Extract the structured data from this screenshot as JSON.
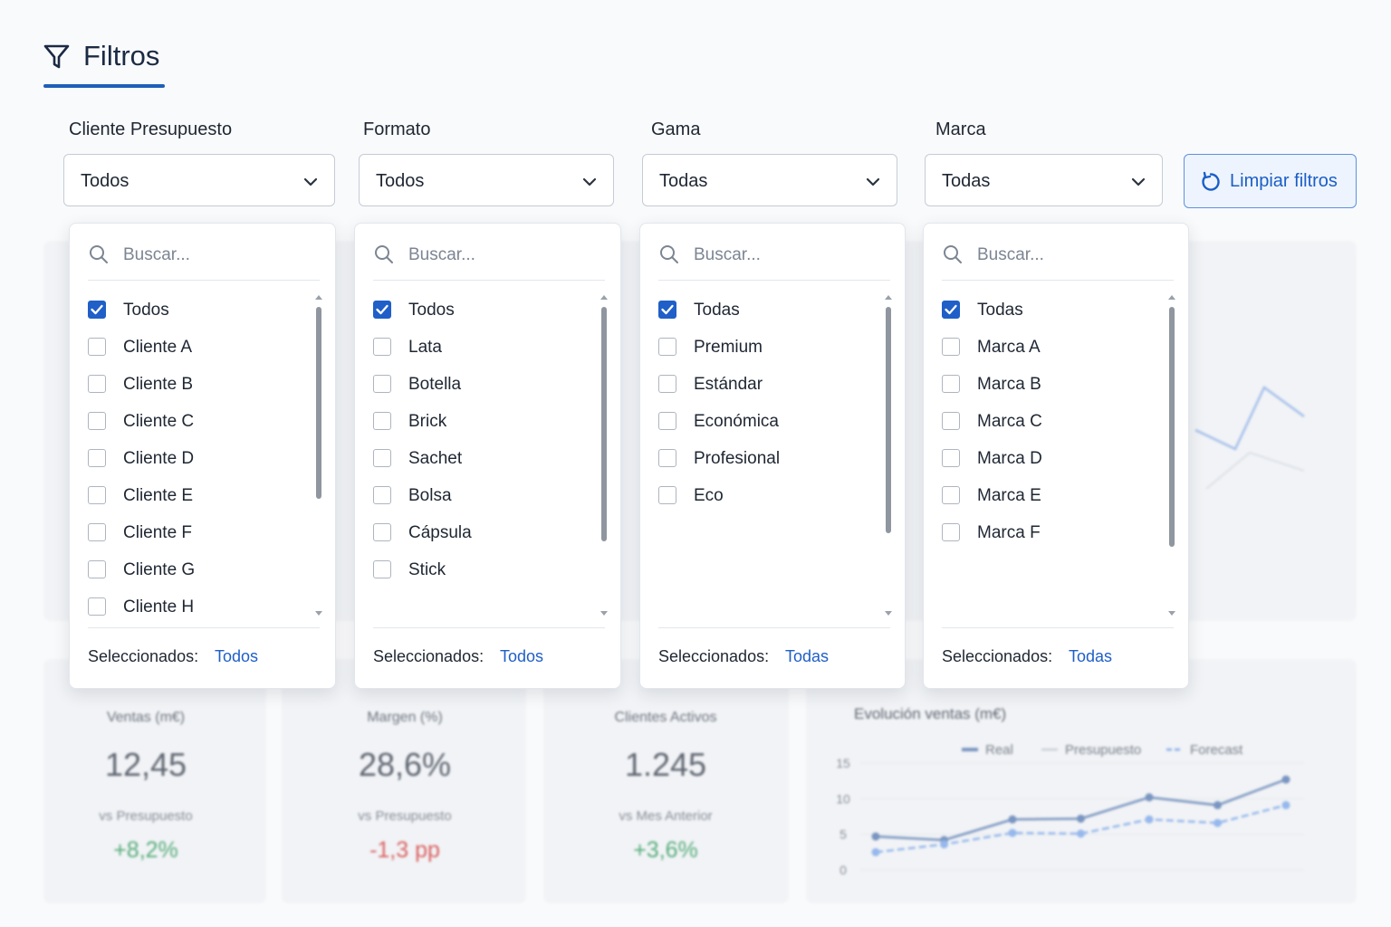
{
  "header": {
    "title": "Filtros"
  },
  "filters": [
    {
      "label": "Cliente Presupuesto",
      "value": "Todos",
      "search_placeholder": "Buscar...",
      "options": [
        {
          "label": "Todos",
          "checked": true
        },
        {
          "label": "Cliente A",
          "checked": false
        },
        {
          "label": "Cliente B",
          "checked": false
        },
        {
          "label": "Cliente C",
          "checked": false
        },
        {
          "label": "Cliente D",
          "checked": false
        },
        {
          "label": "Cliente E",
          "checked": false
        },
        {
          "label": "Cliente F",
          "checked": false
        },
        {
          "label": "Cliente G",
          "checked": false
        },
        {
          "label": "Cliente H",
          "checked": false
        }
      ],
      "selected_label": "Seleccionados:",
      "selected_value": "Todos"
    },
    {
      "label": "Formato",
      "value": "Todos",
      "search_placeholder": "Buscar...",
      "options": [
        {
          "label": "Todos",
          "checked": true
        },
        {
          "label": "Lata",
          "checked": false
        },
        {
          "label": "Botella",
          "checked": false
        },
        {
          "label": "Brick",
          "checked": false
        },
        {
          "label": "Sachet",
          "checked": false
        },
        {
          "label": "Bolsa",
          "checked": false
        },
        {
          "label": "Cápsula",
          "checked": false
        },
        {
          "label": "Stick",
          "checked": false
        }
      ],
      "selected_label": "Seleccionados:",
      "selected_value": "Todos"
    },
    {
      "label": "Gama",
      "value": "Todas",
      "search_placeholder": "Buscar...",
      "options": [
        {
          "label": "Todas",
          "checked": true
        },
        {
          "label": "Premium",
          "checked": false
        },
        {
          "label": "Estándar",
          "checked": false
        },
        {
          "label": "Económica",
          "checked": false
        },
        {
          "label": "Profesional",
          "checked": false
        },
        {
          "label": "Eco",
          "checked": false
        }
      ],
      "selected_label": "Seleccionados:",
      "selected_value": "Todas"
    },
    {
      "label": "Marca",
      "value": "Todas",
      "search_placeholder": "Buscar...",
      "options": [
        {
          "label": "Todas",
          "checked": true
        },
        {
          "label": "Marca A",
          "checked": false
        },
        {
          "label": "Marca B",
          "checked": false
        },
        {
          "label": "Marca C",
          "checked": false
        },
        {
          "label": "Marca D",
          "checked": false
        },
        {
          "label": "Marca E",
          "checked": false
        },
        {
          "label": "Marca F",
          "checked": false
        }
      ],
      "selected_label": "Seleccionados:",
      "selected_value": "Todas"
    }
  ],
  "clear_button": "Limpiar filtros",
  "kpis": [
    {
      "label": "Ventas (m€)",
      "value": "12,45",
      "compare_label": "vs Presupuesto",
      "delta": "+8,2%",
      "color": "#2e9a5a"
    },
    {
      "label": "Margen (%)",
      "value": "28,6%",
      "compare_label": "vs Presupuesto",
      "delta": "-1,3 pp",
      "color": "#d33b3b"
    },
    {
      "label": "Clientes Activos",
      "value": "1.245",
      "compare_label": "vs Mes Anterior",
      "delta": "+3,6%",
      "color": "#2e9a5a"
    }
  ],
  "chart_data": {
    "type": "line",
    "title": "Evolución ventas (m€)",
    "categories": [
      null,
      null,
      null,
      null,
      null,
      null,
      null
    ],
    "series": [
      {
        "name": "Real",
        "color": "#5a7db3",
        "dashed": false,
        "values": [
          4.7,
          4.2,
          7.1,
          7.2,
          10.2,
          9.1,
          12.7
        ]
      },
      {
        "name": "Presupuesto",
        "color": "#c9ced6",
        "dashed": false
      },
      {
        "name": "Forecast",
        "color": "#7ea8ea",
        "dashed": true,
        "values": [
          2.5,
          3.6,
          5.2,
          5.1,
          7.1,
          6.6,
          9.1
        ]
      }
    ],
    "ylim": [
      0,
      15
    ],
    "yticks": [
      0,
      5,
      10,
      15
    ],
    "grid": true
  }
}
